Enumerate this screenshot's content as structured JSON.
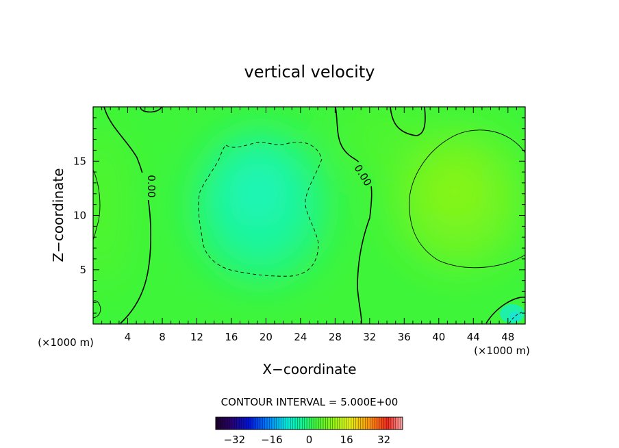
{
  "chart_data": {
    "type": "heatmap",
    "title": "vertical velocity",
    "xlabel": "X−coordinate",
    "ylabel": "Z−coordinate",
    "x_unit_left": "(×1000 m)",
    "x_unit_right": "(×1000 m)",
    "xlim": [
      0,
      50
    ],
    "ylim": [
      0,
      20
    ],
    "x_ticks": [
      4,
      8,
      12,
      16,
      20,
      24,
      28,
      32,
      36,
      40,
      44,
      48
    ],
    "y_ticks": [
      5,
      10,
      15
    ],
    "contour_interval_text": "CONTOUR INTERVAL = 5.000E+00",
    "colorbar": {
      "range": [
        -40,
        40
      ],
      "ticks": [
        "−32",
        "−16",
        "0",
        "16",
        "32"
      ],
      "tick_values": [
        -32,
        -16,
        0,
        16,
        32
      ]
    },
    "contour_labels": [
      {
        "text": "0.00",
        "x": 6.3,
        "z": 12.8,
        "rotation": -90
      },
      {
        "text": "0.00",
        "x": 30.2,
        "z": 13.8,
        "rotation": 58
      }
    ],
    "features": [
      {
        "kind": "min",
        "x": 19.5,
        "z": 12,
        "value": -8
      },
      {
        "kind": "max",
        "x": 42.5,
        "z": 12.2,
        "value": 9
      },
      {
        "kind": "max",
        "x": 0.8,
        "z": 11.5,
        "value": 4
      },
      {
        "kind": "min",
        "x": 48,
        "z": 0.8,
        "value": -9
      }
    ],
    "grid": false,
    "legend": "bottom"
  }
}
